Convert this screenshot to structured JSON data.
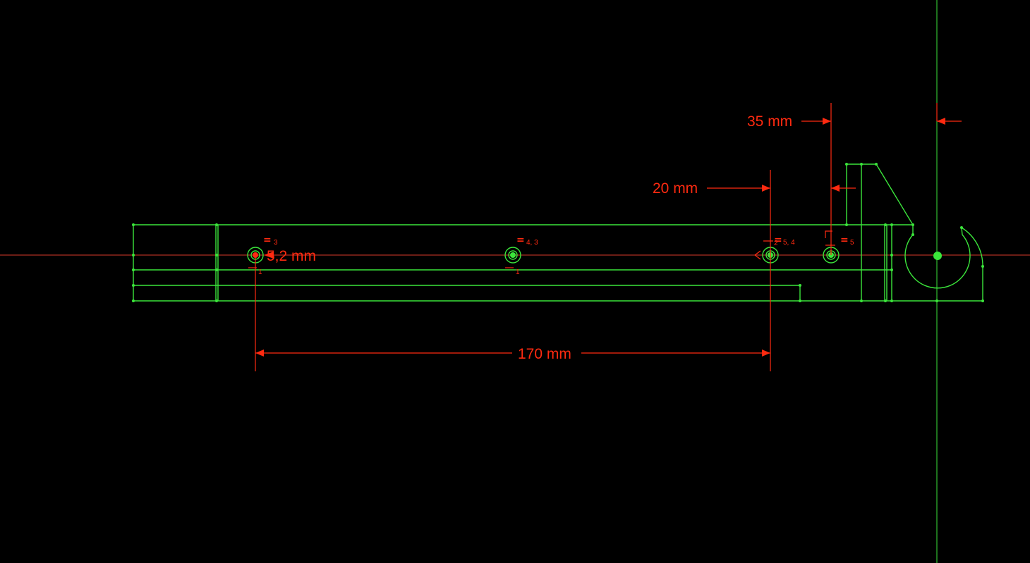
{
  "sketch": {
    "colors": {
      "background": "#000000",
      "geometry": "#3be53b",
      "dimension": "#ff2a10",
      "horizontal_axis": "#d83a2a",
      "vertical_axis": "#3be53b"
    },
    "dimensions": {
      "d35": "35 mm",
      "d20": "20 mm",
      "d170": "170 mm",
      "d5_2": "5,2 mm"
    },
    "constraints": {
      "c1_main": "=",
      "c1_sub": "3",
      "c2_main": "=",
      "c2_sub": "4, 3",
      "c3_main": "=",
      "c3_sub": "5, 4",
      "c4_main": "=",
      "c4_sub": "5",
      "h1_sub": "1",
      "h2_sub": "1",
      "h3_sub": "2"
    }
  }
}
